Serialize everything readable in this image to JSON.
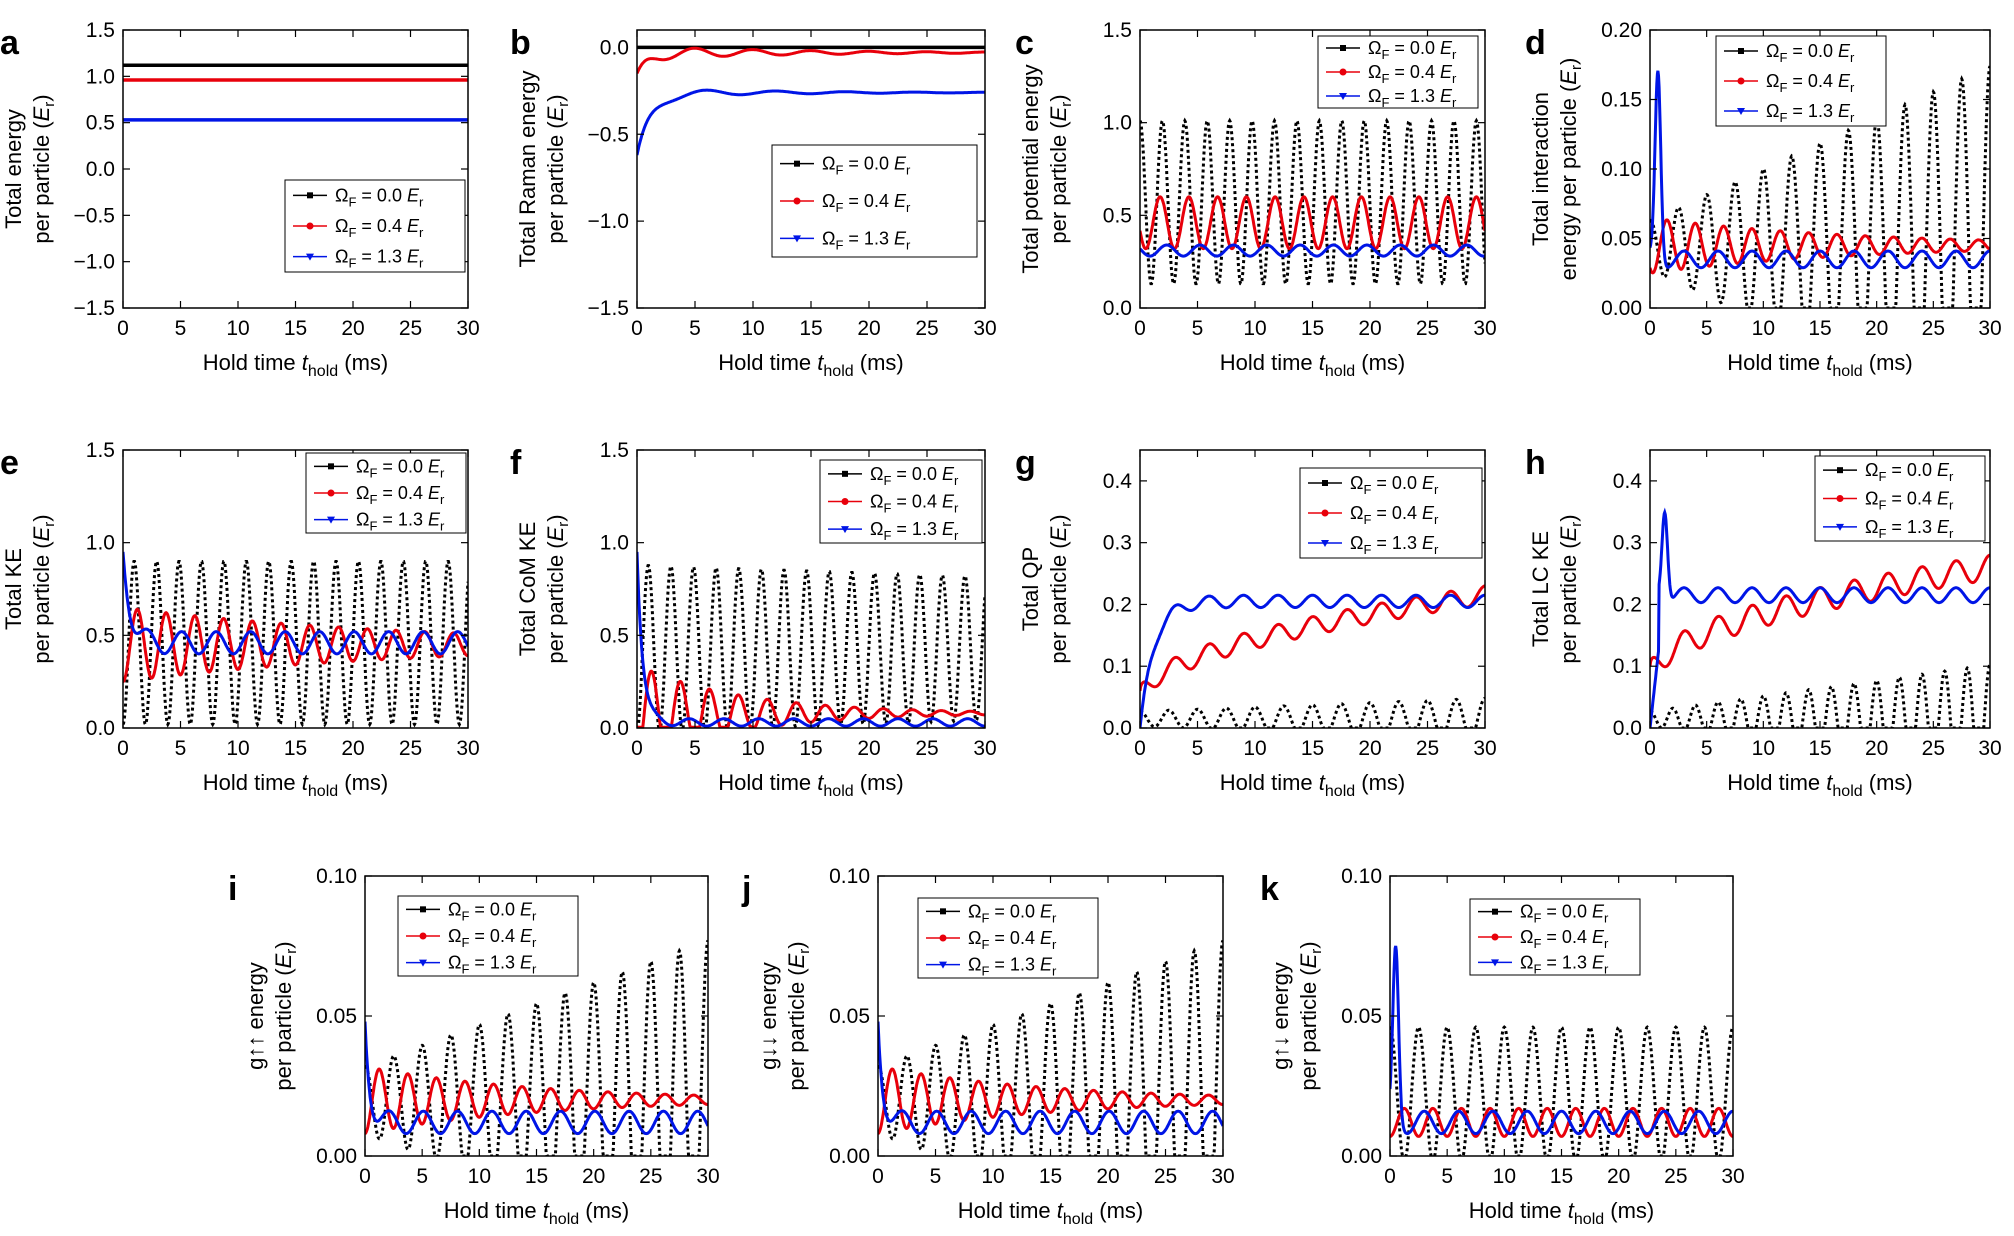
{
  "figure": {
    "legend_common": {
      "symbol": "Ω",
      "sub": "F",
      "unit": "E",
      "unit_sub": "r",
      "entries": [
        {
          "value": "= 0.0",
          "color": "#000000",
          "marker": "square"
        },
        {
          "value": "= 0.4",
          "color": "#e8000b",
          "marker": "circle"
        },
        {
          "value": "= 1.3",
          "color": "#0015e6",
          "marker": "triangle"
        }
      ]
    }
  },
  "chart_data": [
    {
      "id": "a",
      "panel_label": "a",
      "type": "line",
      "ylabel": [
        "Total energy",
        "per particle (Er)"
      ],
      "xlabel": "Hold time thold (ms)",
      "xlim": [
        0,
        30
      ],
      "ylim": [
        -1.5,
        1.5
      ],
      "xticks": [
        "0",
        "5",
        "10",
        "15",
        "20",
        "25",
        "30"
      ],
      "yticks": [
        "−1.5",
        "−1.0",
        "−0.5",
        "0.0",
        "0.5",
        "1.0",
        "1.5"
      ],
      "legend_position": "bottom-right",
      "series": [
        {
          "name": "ΩF = 0.0 Er",
          "mode": "const",
          "value": 1.12
        },
        {
          "name": "ΩF = 0.4 Er",
          "mode": "const",
          "value": 0.96
        },
        {
          "name": "ΩF = 1.3 Er",
          "mode": "const",
          "value": 0.53
        }
      ]
    },
    {
      "id": "b",
      "panel_label": "b",
      "type": "line",
      "ylabel": [
        "Total Raman energy",
        "per particle (Er)"
      ],
      "xlabel": "Hold time thold (ms)",
      "xlim": [
        0,
        30
      ],
      "ylim": [
        -1.5,
        0.1
      ],
      "xticks": [
        "0",
        "5",
        "10",
        "15",
        "20",
        "25",
        "30"
      ],
      "yticks": [
        "−1.5",
        "−1.0",
        "−0.5",
        "0.0"
      ],
      "legend_position": "middle-right",
      "series": [
        {
          "name": "ΩF = 0.0 Er",
          "mode": "const",
          "value": 0.0
        },
        {
          "name": "ΩF = 0.4 Er",
          "mode": "relax",
          "start": -0.15,
          "end": -0.03,
          "tau": 1.0,
          "amp": 0.04,
          "period": 5.0,
          "decay": 12
        },
        {
          "name": "ΩF = 1.3 Er",
          "mode": "relax",
          "start": -0.62,
          "end": -0.26,
          "tau": 1.2,
          "amp": 0.03,
          "period": 6.0,
          "decay": 10
        }
      ]
    },
    {
      "id": "c",
      "panel_label": "c",
      "type": "line",
      "ylabel": [
        "Total potential energy",
        "per particle (Er)"
      ],
      "xlabel": "Hold time thold (ms)",
      "xlim": [
        0,
        30
      ],
      "ylim": [
        0,
        1.5
      ],
      "xticks": [
        "0",
        "5",
        "10",
        "15",
        "20",
        "25",
        "30"
      ],
      "yticks": [
        "0.0",
        "0.5",
        "1.0",
        "1.5"
      ],
      "legend_position": "top-right",
      "series": [
        {
          "name": "ΩF = 0.0 Er",
          "mode": "osc",
          "base": 0.57,
          "amp": 0.44,
          "period": 1.95,
          "phase": 0.0
        },
        {
          "name": "ΩF = 0.4 Er",
          "mode": "osc",
          "base": 0.46,
          "amp": 0.14,
          "period": 2.5,
          "phase": 0.3
        },
        {
          "name": "ΩF = 1.3 Er",
          "mode": "osc",
          "base": 0.31,
          "amp": 0.03,
          "period": 2.9,
          "phase": 0.2
        }
      ]
    },
    {
      "id": "d",
      "panel_label": "d",
      "type": "line",
      "ylabel": [
        "Total interaction",
        "energy per particle (Er)"
      ],
      "xlabel": "Hold time thold (ms)",
      "xlim": [
        0,
        30
      ],
      "ylim": [
        0,
        0.2
      ],
      "xticks": [
        "0",
        "5",
        "10",
        "15",
        "20",
        "25",
        "30"
      ],
      "yticks": [
        "0.00",
        "0.05",
        "0.10",
        "0.15",
        "0.20"
      ],
      "legend_position": "top-right",
      "series": [
        {
          "name": "ΩF = 0.0 Er",
          "mode": "osc",
          "base": 0.045,
          "amp": 0.018,
          "period": 2.5,
          "phase": 0.0,
          "grow": 0.0037
        },
        {
          "name": "ΩF = 0.4 Er",
          "mode": "osc",
          "base": 0.045,
          "amp": 0.02,
          "period": 2.5,
          "phase": 0.4,
          "decay": 18
        },
        {
          "name": "ΩF = 1.3 Er",
          "mode": "spike",
          "base": 0.035,
          "amp": 0.006,
          "period": 3.0,
          "spikeAt": 0.7,
          "spikeH": 0.17
        }
      ]
    },
    {
      "id": "e",
      "panel_label": "e",
      "type": "line",
      "ylabel": [
        "Total KE",
        "per particle (Er)"
      ],
      "xlabel": "Hold time thold (ms)",
      "xlim": [
        0,
        30
      ],
      "ylim": [
        0,
        1.5
      ],
      "xticks": [
        "0",
        "5",
        "10",
        "15",
        "20",
        "25",
        "30"
      ],
      "yticks": [
        "0.0",
        "0.5",
        "1.0",
        "1.5"
      ],
      "legend_position": "top-right",
      "series": [
        {
          "name": "ΩF = 0.0 Er",
          "mode": "osc",
          "base": 0.46,
          "amp": 0.44,
          "period": 1.95,
          "phase": 0.5
        },
        {
          "name": "ΩF = 0.4 Er",
          "mode": "osc",
          "base": 0.45,
          "amp": 0.2,
          "period": 2.5,
          "phase": 0.5,
          "decay": 25
        },
        {
          "name": "ΩF = 1.3 Er",
          "mode": "osc",
          "base": 0.46,
          "amp": 0.06,
          "period": 3.0,
          "phase": 0.3,
          "start": 0.95,
          "tau": 0.6
        }
      ]
    },
    {
      "id": "f",
      "panel_label": "f",
      "type": "line",
      "ylabel": [
        "Total CoM KE",
        "per particle (Er)"
      ],
      "xlabel": "Hold time thold (ms)",
      "xlim": [
        0,
        30
      ],
      "ylim": [
        0,
        1.5
      ],
      "xticks": [
        "0",
        "5",
        "10",
        "15",
        "20",
        "25",
        "30"
      ],
      "yticks": [
        "0.0",
        "0.5",
        "1.0",
        "1.5"
      ],
      "legend_position": "top-right",
      "series": [
        {
          "name": "ΩF = 0.0 Er",
          "mode": "osc",
          "base": 0.43,
          "amp": 0.45,
          "period": 1.95,
          "phase": 0.5,
          "decay": 200
        },
        {
          "name": "ΩF = 0.4 Er",
          "mode": "osc",
          "base": 0.08,
          "amp": 0.26,
          "period": 2.5,
          "phase": 0.5,
          "decay": 9,
          "floor": 0.02
        },
        {
          "name": "ΩF = 1.3 Er",
          "mode": "osc",
          "base": 0.03,
          "amp": 0.02,
          "period": 3.0,
          "phase": 0.5,
          "start": 0.95,
          "tau": 0.5
        }
      ]
    },
    {
      "id": "g",
      "panel_label": "g",
      "type": "line",
      "ylabel": [
        "Total QP",
        "per particle (Er)"
      ],
      "xlabel": "Hold time thold (ms)",
      "xlim": [
        0,
        30
      ],
      "ylim": [
        0,
        0.45
      ],
      "xticks": [
        "0",
        "5",
        "10",
        "15",
        "20",
        "25",
        "30"
      ],
      "yticks": [
        "0.0",
        "0.1",
        "0.2",
        "0.3",
        "0.4"
      ],
      "legend_position": "top-right",
      "series": [
        {
          "name": "ΩF = 0.0 Er",
          "mode": "osc",
          "base": 0.015,
          "amp": 0.012,
          "period": 2.5,
          "phase": 0.0,
          "grow": 0.0007
        },
        {
          "name": "ΩF = 0.4 Er",
          "mode": "ramp",
          "from": 0.03,
          "to": 0.2,
          "amp": 0.03,
          "period": 3.0
        },
        {
          "name": "ΩF = 1.3 Er",
          "mode": "relaxup",
          "start": 0.0,
          "end": 0.205,
          "tau": 1.2,
          "amp": 0.01,
          "period": 3.0
        }
      ]
    },
    {
      "id": "h",
      "panel_label": "h",
      "type": "line",
      "ylabel": [
        "Total LC KE",
        "per particle (Er)"
      ],
      "xlabel": "Hold time thold (ms)",
      "xlim": [
        0,
        30
      ],
      "ylim": [
        0,
        0.45
      ],
      "xticks": [
        "0",
        "5",
        "10",
        "15",
        "20",
        "25",
        "30"
      ],
      "yticks": [
        "0.0",
        "0.1",
        "0.2",
        "0.3",
        "0.4"
      ],
      "legend_position": "top-right",
      "series": [
        {
          "name": "ΩF = 0.0 Er",
          "mode": "osc",
          "base": 0.015,
          "amp": 0.012,
          "period": 2.0,
          "phase": 0.0,
          "grow": 0.0025
        },
        {
          "name": "ΩF = 0.4 Er",
          "mode": "ramp",
          "from": 0.06,
          "to": 0.24,
          "amp": 0.04,
          "period": 3.0
        },
        {
          "name": "ΩF = 1.3 Er",
          "mode": "spike",
          "base": 0.215,
          "amp": 0.012,
          "period": 3.0,
          "spikeAt": 1.3,
          "spikeH": 0.36,
          "rise": 1.0
        }
      ]
    },
    {
      "id": "i",
      "panel_label": "i",
      "type": "line",
      "ylabel": [
        "g↑↑ energy",
        "per particle (Er)"
      ],
      "xlabel": "Hold time thold (ms)",
      "xlim": [
        0,
        30
      ],
      "ylim": [
        0,
        0.1
      ],
      "xticks": [
        "0",
        "5",
        "10",
        "15",
        "20",
        "25",
        "30"
      ],
      "yticks": [
        "0.00",
        "0.05",
        "0.10"
      ],
      "legend_position": "top-right",
      "series": [
        {
          "name": "ΩF = 0.0 Er",
          "mode": "osc",
          "base": 0.02,
          "amp": 0.012,
          "period": 2.5,
          "phase": 0.0,
          "grow": 0.0015
        },
        {
          "name": "ΩF = 0.4 Er",
          "mode": "osc",
          "base": 0.02,
          "amp": 0.012,
          "period": 2.5,
          "phase": 0.5,
          "decay": 15
        },
        {
          "name": "ΩF = 1.3 Er",
          "mode": "osc",
          "base": 0.012,
          "amp": 0.004,
          "period": 3.0,
          "phase": 0.3,
          "start": 0.048,
          "tau": 0.4
        }
      ]
    },
    {
      "id": "j",
      "panel_label": "j",
      "type": "line",
      "ylabel": [
        "g↓↓ energy",
        "per particle (Er)"
      ],
      "xlabel": "Hold time thold (ms)",
      "xlim": [
        0,
        30
      ],
      "ylim": [
        0,
        0.1
      ],
      "xticks": [
        "0",
        "5",
        "10",
        "15",
        "20",
        "25",
        "30"
      ],
      "yticks": [
        "0.00",
        "0.05",
        "0.10"
      ],
      "legend_position": "top-right",
      "series": [
        {
          "name": "ΩF = 0.0 Er",
          "mode": "osc",
          "base": 0.02,
          "amp": 0.012,
          "period": 2.5,
          "phase": 0.0,
          "grow": 0.0015
        },
        {
          "name": "ΩF = 0.4 Er",
          "mode": "osc",
          "base": 0.02,
          "amp": 0.012,
          "period": 2.5,
          "phase": 0.5,
          "decay": 15
        },
        {
          "name": "ΩF = 1.3 Er",
          "mode": "osc",
          "base": 0.012,
          "amp": 0.004,
          "period": 3.0,
          "phase": 0.3,
          "start": 0.048,
          "tau": 0.4
        }
      ]
    },
    {
      "id": "k",
      "panel_label": "k",
      "type": "line",
      "ylabel": [
        "g↑↓ energy",
        "per particle (Er)"
      ],
      "xlabel": "Hold time thold (ms)",
      "xlim": [
        0,
        30
      ],
      "ylim": [
        0,
        0.1
      ],
      "xticks": [
        "0",
        "5",
        "10",
        "15",
        "20",
        "25",
        "30"
      ],
      "yticks": [
        "0.00",
        "0.05",
        "0.10"
      ],
      "legend_position": "top-right",
      "series": [
        {
          "name": "ΩF = 0.0 Er",
          "mode": "osc",
          "base": 0.022,
          "amp": 0.024,
          "period": 2.5,
          "phase": 0.0
        },
        {
          "name": "ΩF = 0.4 Er",
          "mode": "osc",
          "base": 0.012,
          "amp": 0.005,
          "period": 2.5,
          "phase": 0.5
        },
        {
          "name": "ΩF = 1.3 Er",
          "mode": "spike",
          "base": 0.012,
          "amp": 0.004,
          "period": 3.0,
          "spikeAt": 0.5,
          "spikeH": 0.073
        }
      ]
    }
  ]
}
